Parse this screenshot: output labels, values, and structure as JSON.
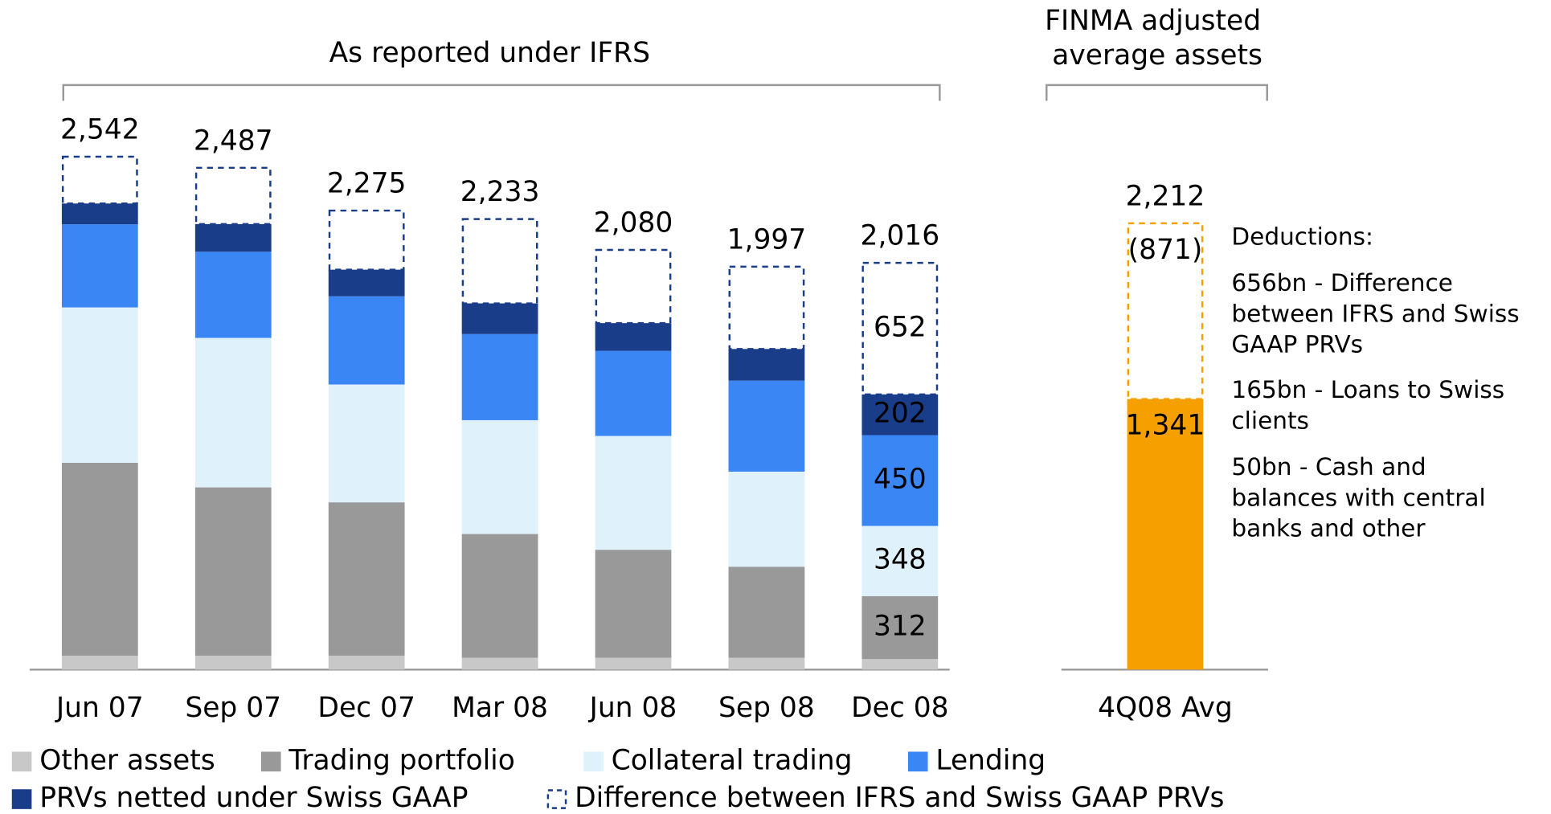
{
  "chart_data": [
    {
      "type": "stacked_bar",
      "title": "As reported under IFRS",
      "categories": [
        "Jun 07",
        "Sep 07",
        "Dec 07",
        "Mar 08",
        "Jun 08",
        "Sep 08",
        "Dec 08"
      ],
      "ylim": [
        0,
        2600
      ],
      "series": [
        {
          "name": "Other assets",
          "color": "#c8c8c8",
          "values": [
            69,
            69,
            69,
            59,
            59,
            59,
            52
          ]
        },
        {
          "name": "Trading portfolio",
          "color": "#999999",
          "values": [
            956,
            834,
            760,
            613,
            535,
            451,
            312
          ],
          "value_labels": [
            null,
            null,
            null,
            null,
            null,
            null,
            "312"
          ]
        },
        {
          "name": "Collateral trading",
          "color": "#dff1fa",
          "values": [
            770,
            741,
            584,
            564,
            564,
            471,
            348
          ],
          "value_labels": [
            null,
            null,
            null,
            null,
            null,
            null,
            "348"
          ]
        },
        {
          "name": "Lending",
          "color": "#3b86f5",
          "values": [
            412,
            427,
            437,
            427,
            422,
            451,
            450
          ],
          "value_labels": [
            null,
            null,
            null,
            null,
            null,
            null,
            "450"
          ]
        },
        {
          "name": "PRVs netted under Swiss GAAP",
          "color": "#1a3d8a",
          "values": [
            103,
            137,
            132,
            152,
            137,
            157,
            202
          ],
          "value_labels": [
            null,
            null,
            null,
            null,
            null,
            null,
            "202"
          ]
        },
        {
          "name": "Difference between IFRS and Swiss GAAP PRVs",
          "color": "#1a3d8a",
          "dashed": true,
          "values": [
            232,
            279,
            293,
            418,
            363,
            408,
            652
          ],
          "value_labels": [
            null,
            null,
            null,
            null,
            null,
            null,
            "652"
          ]
        }
      ],
      "totals": [
        2542,
        2487,
        2275,
        2233,
        2080,
        1997,
        2016
      ],
      "total_labels": [
        "2,542",
        "2,487",
        "2,275",
        "2,233",
        "2,080",
        "1,997",
        "2,016"
      ],
      "label_position": "center",
      "legend": "bottom"
    },
    {
      "type": "stacked_bar",
      "title": "FINMA adjusted average assets",
      "categories": [
        "4Q08 Avg"
      ],
      "ylim": [
        0,
        2600
      ],
      "series": [
        {
          "color": "#f5a000",
          "values": [
            1341
          ],
          "value_labels": [
            "1,341"
          ]
        },
        {
          "color": "#f5a000",
          "dashed": true,
          "values": [
            871
          ],
          "value_labels": [
            "(871)"
          ]
        }
      ],
      "totals": [
        2212
      ],
      "total_labels": [
        "2,212"
      ],
      "label_position": "top",
      "annotations": [
        "Deductions:",
        "656bn - Difference between IFRS and Swiss GAAP PRVs",
        "165bn - Loans to Swiss clients",
        "50bn - Cash and balances with central banks and other"
      ]
    }
  ]
}
